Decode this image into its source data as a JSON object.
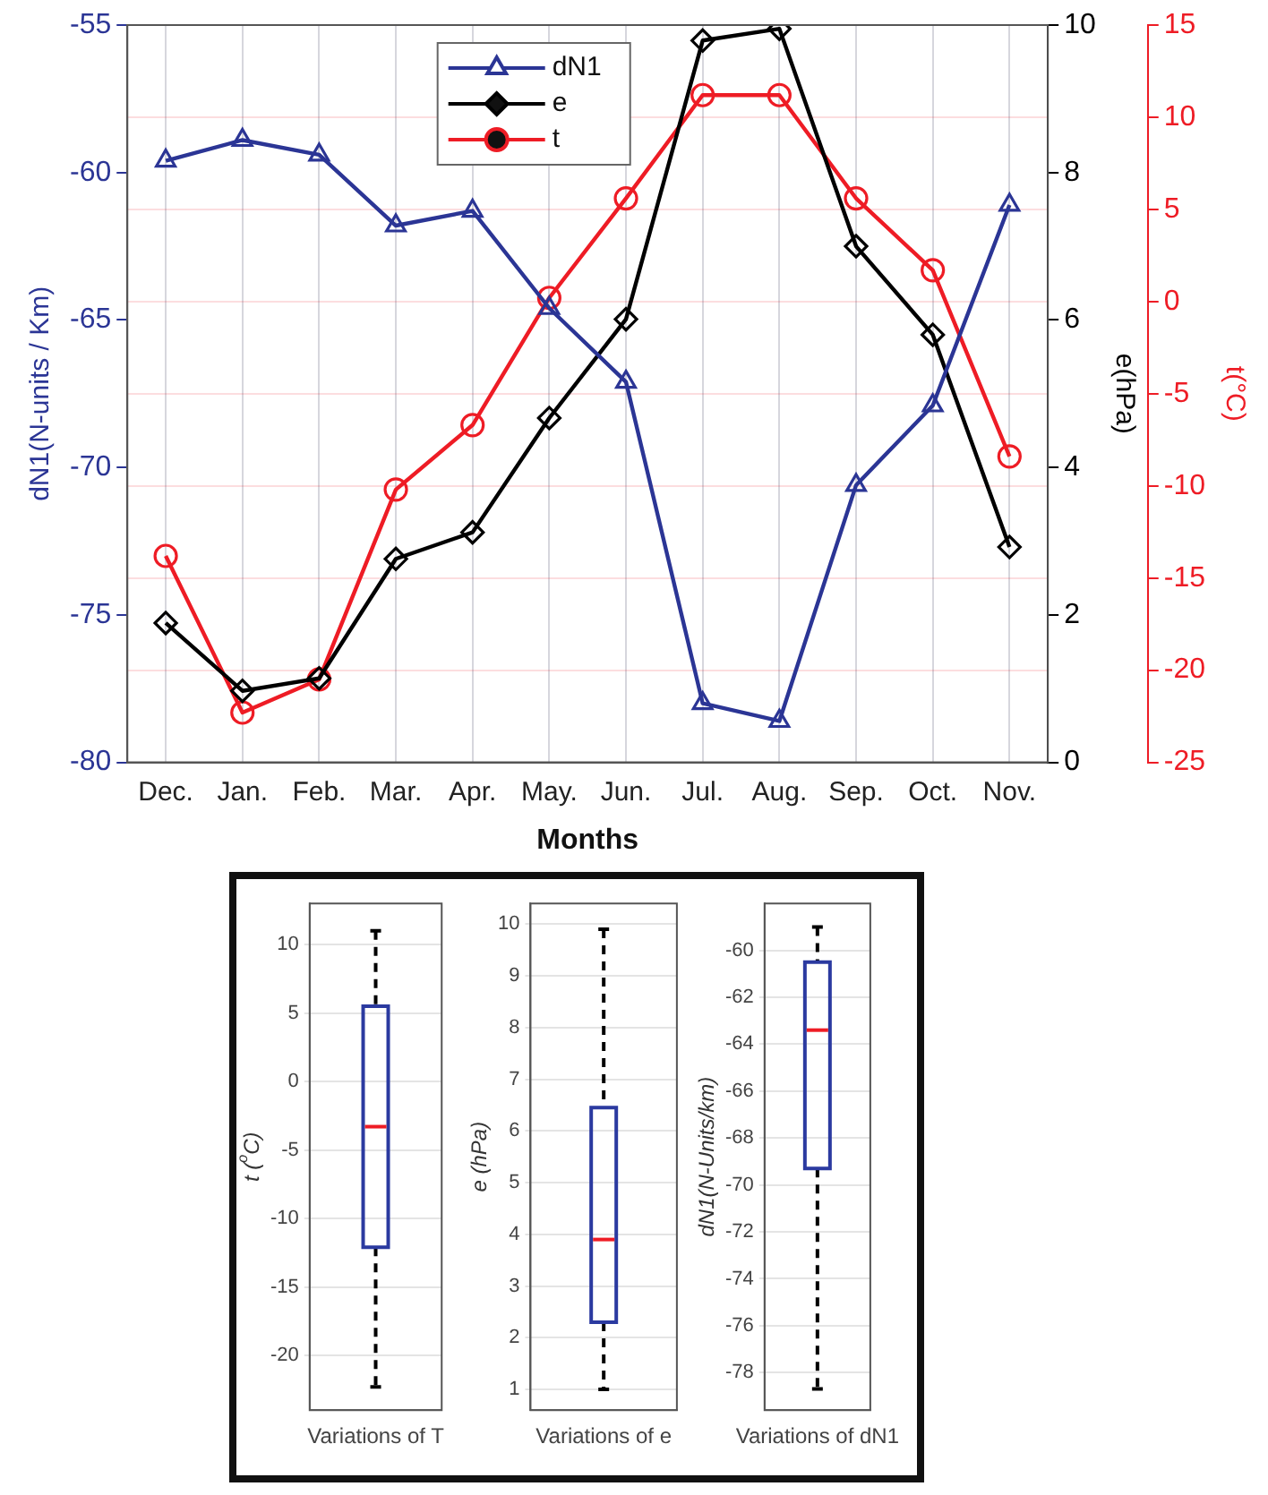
{
  "chart_data": [
    {
      "type": "line",
      "xlabel": "Months",
      "ylabel": "dN1(N-units / Km)",
      "y2label": "e(hPa)",
      "y3label": "t(°C)",
      "categories": [
        "Dec.",
        "Jan.",
        "Feb.",
        "Mar.",
        "Apr.",
        "May.",
        "Jun.",
        "Jul.",
        "Aug.",
        "Sep.",
        "Oct.",
        "Nov."
      ],
      "series": [
        {
          "name": "dN1",
          "color": "#2b3595",
          "marker": "triangle",
          "values": [
            -59.6,
            -58.9,
            -59.4,
            -61.8,
            -61.3,
            -64.6,
            -67.1,
            -78.0,
            -78.6,
            -70.6,
            -67.9,
            -61.1
          ]
        },
        {
          "name": "e",
          "color": "#000000",
          "marker": "diamond",
          "axis": "y2",
          "values": [
            1.89,
            0.97,
            1.14,
            2.76,
            3.12,
            4.67,
            6.01,
            9.79,
            9.95,
            7.0,
            5.8,
            2.92
          ]
        },
        {
          "name": "t",
          "color": "#ee1c25",
          "marker": "circle",
          "axis": "y3",
          "values": [
            -13.8,
            -22.3,
            -20.5,
            -10.2,
            -6.7,
            0.2,
            5.6,
            11.2,
            11.2,
            5.6,
            1.7,
            -8.4
          ]
        }
      ],
      "ylim": [
        -80,
        -55
      ],
      "yticks": [
        -80,
        -75,
        -70,
        -65,
        -60,
        -55
      ],
      "y2lim": [
        0,
        10
      ],
      "y2ticks": [
        0,
        2,
        4,
        6,
        8,
        10
      ],
      "y3lim": [
        -25,
        15
      ],
      "y3ticks": [
        -25,
        -20,
        -15,
        -10,
        -5,
        0,
        5,
        10,
        15
      ],
      "grid": true,
      "legend": "top",
      "line_style": "solid"
    },
    {
      "type": "box",
      "ylabel": "t ($^{o}$C)",
      "categories": [
        "Variations of T"
      ],
      "color": "#2b3aa0",
      "boxes": [
        {
          "low": -22.3,
          "q1": -12.1,
          "median": -3.3,
          "q3": 5.5,
          "high": 11.0
        }
      ],
      "ylim": [
        -24,
        13
      ],
      "yticks": [
        -20,
        -15,
        -10,
        -5,
        0,
        5,
        10
      ],
      "grid": "y"
    },
    {
      "type": "box",
      "ylabel": "e (hPa)",
      "categories": [
        "Variations of e"
      ],
      "color": "#2b3aa0",
      "boxes": [
        {
          "low": 1.0,
          "q1": 2.3,
          "median": 3.9,
          "q3": 6.45,
          "high": 9.9
        }
      ],
      "ylim": [
        0.6,
        10.4
      ],
      "yticks": [
        1,
        2,
        3,
        4,
        5,
        6,
        7,
        8,
        9,
        10
      ],
      "grid": "y"
    },
    {
      "type": "box",
      "ylabel": "dN1(N-Units/km)",
      "categories": [
        "Variations of dN1"
      ],
      "color": "#2b3aa0",
      "boxes": [
        {
          "low": -78.7,
          "q1": -69.3,
          "median": -63.4,
          "q3": -60.5,
          "high": -59.0
        }
      ],
      "ylim": [
        -79.6,
        -58
      ],
      "yticks": [
        -78,
        -76,
        -74,
        -72,
        -70,
        -68,
        -66,
        -64,
        -62,
        -60
      ],
      "grid": "y"
    }
  ]
}
